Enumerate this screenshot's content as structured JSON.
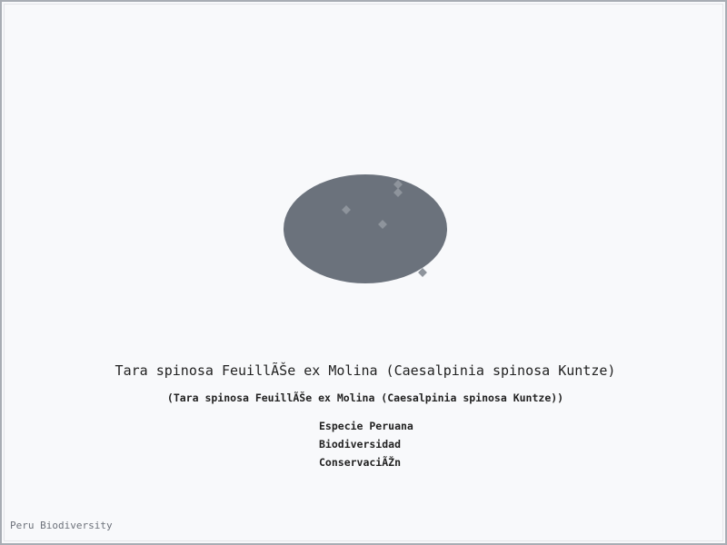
{
  "species": {
    "title": "Tara spinosa FeuillÃŠe ex Molina (Caesalpinia spinosa Kuntze)",
    "subtitle": "(Tara spinosa FeuillÃŠe ex Molina (Caesalpinia spinosa Kuntze))"
  },
  "tags": [
    "Especie Peruana",
    "Biodiversidad",
    "ConservaciÃŽn"
  ],
  "footer": {
    "credit": "Peru Biodiversity"
  },
  "colors": {
    "page_background": "#f8f9fb",
    "frame": "#a8adb4",
    "blob_fill": "#6b727c",
    "marker_fill": "#8e949c",
    "text": "#222222",
    "footer_text": "#6c717a"
  }
}
